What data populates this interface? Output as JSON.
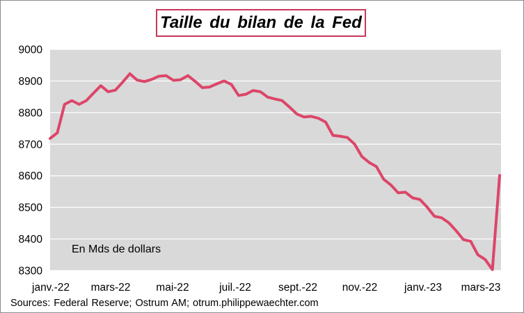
{
  "chart_data": {
    "type": "line",
    "title": "Taille du bilan de la Fed",
    "annotation": "En Mds de dollars",
    "source": "Sources: Federal Reserve; Ostrum AM; otrum.philippewaechter.com",
    "xlabel": "",
    "ylabel": "",
    "ylim": [
      8300,
      9000
    ],
    "yticks": [
      8300,
      8400,
      8500,
      8600,
      8700,
      8800,
      8900,
      9000
    ],
    "x_tick_labels": [
      "janv.-22",
      "mars-22",
      "mai-22",
      "juil.-22",
      "sept.-22",
      "nov.-22",
      "janv.-23",
      "mars-23"
    ],
    "grid": "horizontal",
    "background": "#d9d9d9",
    "line_color": "#dc4669",
    "series": [
      {
        "values": [
          8718,
          8736,
          8826,
          8838,
          8826,
          8838,
          8862,
          8885,
          8866,
          8871,
          8896,
          8923,
          8903,
          8898,
          8905,
          8915,
          8917,
          8902,
          8904,
          8917,
          8899,
          8879,
          8881,
          8891,
          8900,
          8889,
          8854,
          8858,
          8870,
          8866,
          8849,
          8843,
          8838,
          8818,
          8796,
          8786,
          8788,
          8782,
          8770,
          8728,
          8725,
          8721,
          8700,
          8661,
          8642,
          8629,
          8589,
          8571,
          8546,
          8548,
          8530,
          8525,
          8501,
          8472,
          8467,
          8451,
          8426,
          8398,
          8393,
          8350,
          8335,
          8303,
          8601
        ]
      }
    ]
  }
}
